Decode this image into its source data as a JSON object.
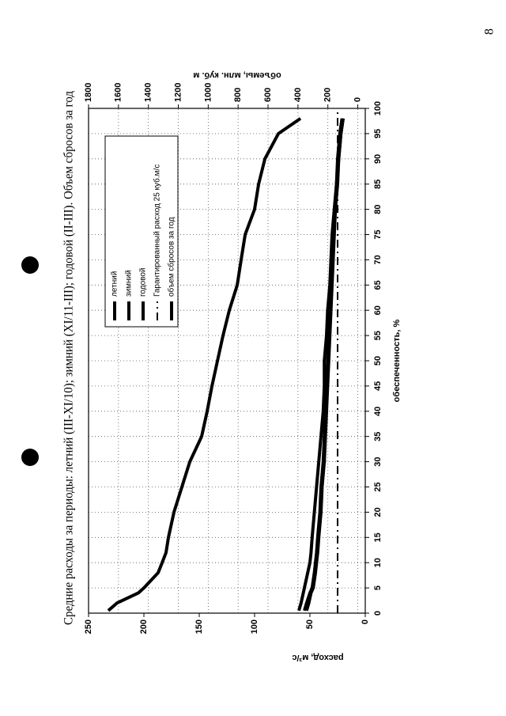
{
  "page_number": "8",
  "chart_data": {
    "type": "line",
    "title": "Средние расходы за периоды: летний (III-XI/10); зимний (XI/11-III); годовой (II-III). Объем сбросов за год",
    "x_label": "обеспеченность, %",
    "y_label": "расход, м³/с",
    "y2_label": "объемы, млн. куб. м",
    "x": [
      0.5,
      2,
      4,
      5,
      8,
      10,
      12,
      15,
      20,
      25,
      30,
      35,
      40,
      45,
      50,
      55,
      60,
      65,
      70,
      75,
      80,
      85,
      90,
      95,
      98
    ],
    "xlim": [
      0,
      100
    ],
    "xticks": [
      0,
      5,
      10,
      15,
      20,
      25,
      30,
      35,
      40,
      45,
      50,
      55,
      60,
      65,
      70,
      75,
      80,
      85,
      90,
      95,
      100
    ],
    "ylim": [
      0,
      250
    ],
    "yticks": [
      0,
      50,
      100,
      150,
      200,
      250
    ],
    "y2lim": [
      -50,
      1800
    ],
    "y2ticks": [
      0,
      200,
      400,
      600,
      800,
      1000,
      1200,
      1400,
      1600,
      1800
    ],
    "grid": true,
    "legend": "upper right",
    "series": [
      {
        "name": "летний",
        "color": "#000000",
        "values": [
          60,
          58,
          56,
          55,
          52,
          50,
          49,
          48,
          46,
          44,
          42,
          40,
          38,
          37,
          37,
          35,
          34,
          32,
          31,
          30,
          28,
          26,
          25,
          23,
          21
        ]
      },
      {
        "name": "зимний",
        "color": "#000000",
        "values": [
          55,
          53,
          50,
          48,
          46,
          45,
          44,
          43,
          41,
          40,
          38,
          37,
          36,
          35,
          34,
          33,
          32,
          31,
          30,
          29,
          27,
          26,
          24,
          22,
          20
        ]
      },
      {
        "name": "годовой",
        "color": "#000000",
        "values": [
          53,
          51,
          49,
          47,
          45,
          44,
          43,
          42,
          40,
          39,
          37,
          36,
          35,
          34,
          33,
          32,
          31,
          30,
          29,
          28,
          27,
          25,
          24,
          22,
          20
        ]
      },
      {
        "name": "Гарантированный расход 25 куб.м/с",
        "color": "#000000",
        "dash": "dashdot",
        "x": [
          0,
          100
        ],
        "values": [
          25,
          25
        ]
      },
      {
        "name": "объем сбросов за год",
        "color": "#000000",
        "axis": "y2",
        "values": [
          1668,
          1610,
          1467,
          1430,
          1335,
          1308,
          1282,
          1266,
          1229,
          1176,
          1123,
          1044,
          1007,
          975,
          938,
          901,
          859,
          806,
          780,
          753,
          690,
          663,
          621,
          531,
          383
        ]
      }
    ]
  }
}
